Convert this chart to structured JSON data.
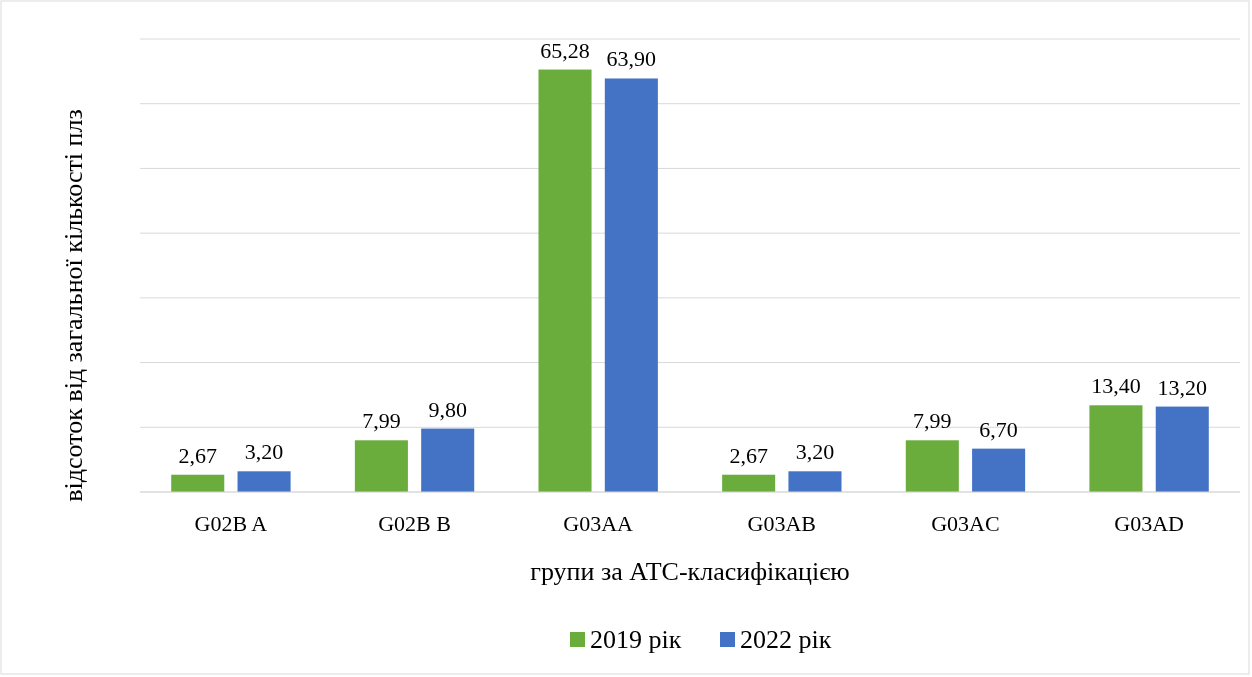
{
  "chart_data": {
    "type": "bar",
    "xlabel": "групи за АТС-класифікацією",
    "ylabel": "відсоток від загальної кількості плз",
    "categories": [
      "G02B A",
      "G02B B",
      "G03AA",
      "G03AB",
      "G03AC",
      "G03AD"
    ],
    "series": [
      {
        "name": "2019 рік",
        "color": "#6aad3d",
        "values": [
          2.67,
          7.99,
          65.28,
          2.67,
          7.99,
          13.4
        ],
        "value_labels": [
          "2,67",
          "7,99",
          "65,28",
          "2,67",
          "7,99",
          "13,40"
        ]
      },
      {
        "name": "2022 рік",
        "color": "#4472c4",
        "values": [
          3.2,
          9.8,
          63.9,
          3.2,
          6.7,
          13.2
        ],
        "value_labels": [
          "3,20",
          "9,80",
          "63,90",
          "3,20",
          "6,70",
          "13,20"
        ]
      }
    ],
    "ylim": [
      0,
      70
    ],
    "yticks": [
      {
        "value": 0,
        "label": null
      },
      {
        "value": 10,
        "label": null
      },
      {
        "value": 20,
        "label": null
      },
      {
        "value": 30,
        "label": null
      },
      {
        "value": 40,
        "label": null
      },
      {
        "value": 50,
        "label": null
      },
      {
        "value": 60,
        "label": null
      },
      {
        "value": 70,
        "label": null
      }
    ],
    "tick_labels": "x",
    "grid": "y",
    "legend": "bottom"
  }
}
